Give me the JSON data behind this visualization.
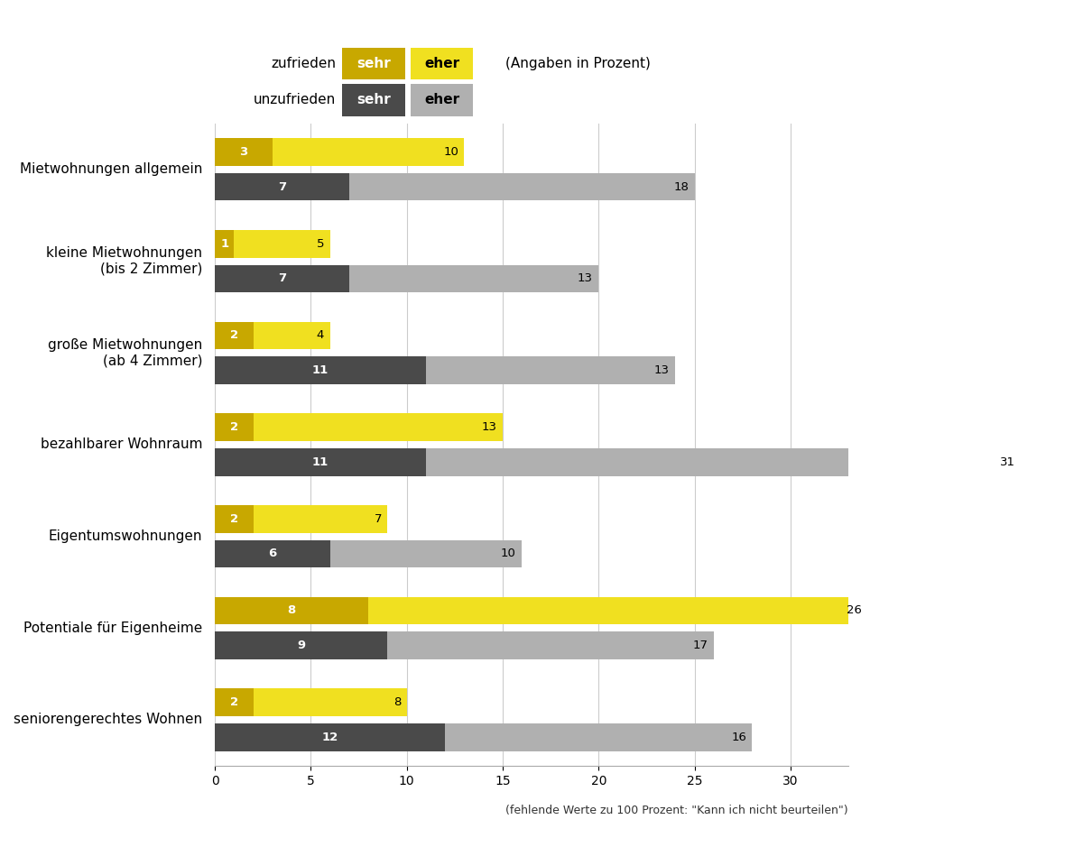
{
  "categories": [
    "Mietwohnungen allgemein",
    "kleine Mietwohnungen\n(bis 2 Zimmer)",
    "große Mietwohnungen\n(ab 4 Zimmer)",
    "bezahlbarer Wohnraum",
    "Eigentumswohnungen",
    "Potentiale für Eigenheime",
    "seniorengerechtes Wohnen"
  ],
  "sehr_zufrieden": [
    3,
    1,
    2,
    2,
    2,
    8,
    2
  ],
  "eher_zufrieden": [
    10,
    5,
    4,
    13,
    7,
    26,
    8
  ],
  "sehr_unzufrieden": [
    7,
    7,
    11,
    11,
    6,
    9,
    12
  ],
  "eher_unzufrieden": [
    18,
    13,
    13,
    31,
    10,
    17,
    16
  ],
  "color_sehr_zufrieden": "#c8a800",
  "color_eher_zufrieden": "#f0e020",
  "color_sehr_unzufrieden": "#4a4a4a",
  "color_eher_unzufrieden": "#b0b0b0",
  "xlim": [
    0,
    33
  ],
  "xticks": [
    0,
    5,
    10,
    15,
    20,
    25,
    30
  ],
  "xlabel_note": "(fehlende Werte zu 100 Prozent: \"Kann ich nicht beurteilen\")",
  "legend_note": "(Angaben in Prozent)",
  "bar_height": 0.3,
  "bar_gap": 0.08
}
